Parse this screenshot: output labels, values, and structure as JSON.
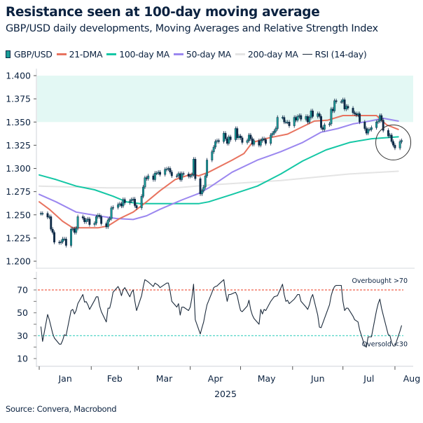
{
  "chart_data": {
    "type": "candlestick-line",
    "title": "Resistance seen at 100-day moving average",
    "subtitle": "GBP/USD daily developments, Moving Averages and Relative Strength Index",
    "source": "Source: Convera, Macrobond",
    "x_axis": {
      "months": [
        "Jan",
        "Feb",
        "Mar",
        "Apr",
        "May",
        "Jun",
        "Jul",
        "Aug"
      ],
      "year_label": "2025",
      "range": [
        "2025-01-01",
        "2025-08-10"
      ]
    },
    "price_axis": {
      "range": [
        1.2,
        1.4
      ],
      "ticks": [
        "1.400",
        "1.375",
        "1.350",
        "1.325",
        "1.300",
        "1.275",
        "1.250",
        "1.225",
        "1.200"
      ]
    },
    "rsi_axis": {
      "range": [
        0,
        85
      ],
      "ticks": [
        "70",
        "50",
        "30",
        "10"
      ]
    },
    "resistance_band": {
      "from": 1.35,
      "to": 1.4,
      "color": "#e3f8f4"
    },
    "highlight_circle": {
      "date": "2025-07-31",
      "price": 1.328
    },
    "rsi_levels": [
      {
        "value": 70,
        "label": "Overbought >70",
        "color": "#f0604a"
      },
      {
        "value": 30,
        "label": "Oversold <30",
        "color": "#3fd1c0"
      }
    ],
    "legend": [
      {
        "name": "GBP/USD",
        "kind": "candle"
      },
      {
        "name": "21-DMA",
        "color": "#e8735f"
      },
      {
        "name": "100-day MA",
        "color": "#14c7a5"
      },
      {
        "name": "50-day MA",
        "color": "#9b87ef"
      },
      {
        "name": "200-day MA",
        "color": "#e4e4e4"
      },
      {
        "name": "RSI (14-day)",
        "color": "#1c2b3c"
      }
    ],
    "colors": {
      "up": "#1a9e98",
      "down": "#0e2a47",
      "outline": "#0e2a47"
    },
    "weeks": [
      {
        "week": "2025-01-02",
        "close": [
          1.2515,
          1.2515
        ],
        "rsi": [
          38,
          25
        ]
      },
      {
        "week": "2025-01-06",
        "close": [
          1.2475,
          1.248,
          1.2345,
          1.231,
          1.2205
        ],
        "rsi": [
          48.6,
          44,
          38,
          32,
          28
        ]
      },
      {
        "week": "2025-01-13",
        "close": [
          1.22,
          1.221,
          1.224,
          1.224,
          1.217
        ],
        "rsi": [
          22.6,
          22.6,
          26,
          30.8,
          30
        ]
      },
      {
        "week": "2025-01-20",
        "close": [
          1.2345,
          1.235,
          1.231,
          1.2355,
          1.248
        ],
        "rsi": [
          52,
          53,
          49,
          52,
          58
        ]
      },
      {
        "week": "2025-01-27",
        "close": [
          1.2465,
          1.2425,
          1.2445,
          1.2455,
          1.2395
        ],
        "rsi": [
          66,
          59.4,
          59.8,
          57,
          53
        ]
      },
      {
        "week": "2025-02-03",
        "close": [
          1.241,
          1.248,
          1.2495,
          1.248,
          1.2405
        ],
        "rsi": [
          61,
          64,
          64,
          56,
          51
        ]
      },
      {
        "week": "2025-02-10",
        "close": [
          1.237,
          1.2445,
          1.246,
          1.2575,
          1.258
        ],
        "rsi": [
          42,
          54,
          54,
          60,
          68
        ]
      },
      {
        "week": "2025-02-17",
        "close": [
          1.261,
          1.262,
          1.2595,
          1.2665,
          1.263
        ],
        "rsi": [
          73,
          70,
          65,
          70,
          72
        ]
      },
      {
        "week": "2025-02-24",
        "close": [
          1.265,
          1.2665,
          1.267,
          1.26,
          1.2575
        ],
        "rsi": [
          64,
          68,
          70,
          60,
          52
        ]
      },
      {
        "week": "2025-03-03",
        "close": [
          1.27,
          1.28,
          1.29,
          1.289,
          1.292
        ],
        "rsi": [
          65,
          73,
          79,
          78,
          77
        ]
      },
      {
        "week": "2025-03-10",
        "close": [
          1.288,
          1.295,
          1.295,
          1.296,
          1.2935
        ],
        "rsi": [
          73,
          76,
          75,
          74,
          72
        ]
      },
      {
        "week": "2025-03-17",
        "close": [
          1.299,
          1.2995,
          1.3,
          1.296,
          1.292
        ],
        "rsi": [
          75,
          76,
          76,
          69,
          60
        ]
      },
      {
        "week": "2025-03-24",
        "close": [
          1.292,
          1.2945,
          1.288,
          1.2945,
          1.294
        ],
        "rsi": [
          55,
          58,
          48,
          55,
          55
        ]
      },
      {
        "week": "2025-03-31",
        "close": [
          1.2915,
          1.292,
          1.2935,
          1.31,
          1.289
        ],
        "rsi": [
          52,
          55,
          63,
          75,
          44
        ]
      },
      {
        "week": "2025-04-07",
        "close": [
          1.2725,
          1.276,
          1.28,
          1.292,
          1.309
        ],
        "rsi": [
          31.5,
          37,
          42,
          50,
          57
        ]
      },
      {
        "week": "2025-04-14",
        "close": [
          1.318,
          1.323,
          1.329,
          1.33,
          1.329
        ],
        "rsi": [
          68,
          72,
          73,
          73.5,
          75
        ]
      },
      {
        "week": "2025-04-21",
        "close": [
          1.338,
          1.332,
          1.327,
          1.334,
          1.331
        ],
        "rsi": [
          79,
          68,
          60,
          66,
          66
        ]
      },
      {
        "week": "2025-04-28",
        "close": [
          1.343,
          1.333,
          1.335,
          1.333,
          1.328
        ],
        "rsi": [
          68,
          65,
          58,
          52,
          51
        ]
      },
      {
        "week": "2025-05-05",
        "close": [
          1.33,
          1.336,
          1.332,
          1.326,
          1.33
        ],
        "rsi": [
          56,
          61,
          53,
          48,
          45
        ]
      },
      {
        "week": "2025-05-12",
        "close": [
          1.325,
          1.33,
          1.332,
          1.331,
          1.327
        ],
        "rsi": [
          40,
          53,
          49,
          53,
          52
        ]
      },
      {
        "week": "2025-05-19",
        "close": [
          1.336,
          1.338,
          1.34,
          1.343,
          1.355
        ],
        "rsi": [
          60,
          62,
          64,
          64.5,
          65
        ]
      },
      {
        "week": "2025-05-26",
        "close": [
          1.355,
          1.35,
          1.35,
          1.35,
          1.346
        ],
        "rsi": [
          75,
          66,
          60,
          61,
          58
        ]
      },
      {
        "week": "2025-06-02",
        "close": [
          1.355,
          1.352,
          1.356,
          1.357,
          1.353
        ],
        "rsi": [
          62,
          64,
          66,
          66,
          60
        ]
      },
      {
        "week": "2025-06-09",
        "close": [
          1.356,
          1.35,
          1.355,
          1.362,
          1.356
        ],
        "rsi": [
          55,
          53,
          57,
          63,
          66
        ]
      },
      {
        "week": "2025-06-16",
        "close": [
          1.359,
          1.356,
          1.344,
          1.342,
          1.347
        ],
        "rsi": [
          48,
          37.5,
          37,
          41,
          45
        ]
      },
      {
        "week": "2025-06-23",
        "close": [
          1.348,
          1.364,
          1.362,
          1.373,
          1.372
        ],
        "rsi": [
          57,
          65,
          70,
          73,
          74
        ]
      },
      {
        "week": "2025-06-30",
        "close": [
          1.372,
          1.374,
          1.364,
          1.367,
          1.365
        ],
        "rsi": [
          74,
          60,
          52,
          54,
          54
        ]
      },
      {
        "week": "2025-07-07",
        "close": [
          1.36,
          1.359,
          1.3575,
          1.359,
          1.35
        ],
        "rsi": [
          47,
          44,
          43,
          42,
          35
        ]
      },
      {
        "week": "2025-07-14",
        "close": [
          1.343,
          1.338,
          1.342,
          1.342,
          1.344
        ],
        "rsi": [
          21,
          20,
          29,
          29,
          29
        ]
      },
      {
        "week": "2025-07-21",
        "close": [
          1.35,
          1.351,
          1.357,
          1.352,
          1.341
        ],
        "rsi": [
          52,
          58,
          62,
          54,
          48
        ]
      },
      {
        "week": "2025-07-28",
        "close": [
          1.335,
          1.336,
          1.329,
          1.325,
          1.322
        ],
        "rsi": [
          30.8,
          30.2,
          24,
          21,
          21
        ]
      },
      {
        "week": "2025-08-04",
        "close": [
          1.329,
          1.33
        ],
        "rsi": [
          34,
          39
        ]
      }
    ],
    "moving_averages": {
      "dma21": [
        [
          "2025-01-01",
          1.264
        ],
        [
          "2025-01-07",
          1.256
        ],
        [
          "2025-01-15",
          1.243
        ],
        [
          "2025-01-21",
          1.236
        ],
        [
          "2025-01-30",
          1.236
        ],
        [
          "2025-02-05",
          1.236
        ],
        [
          "2025-02-11",
          1.238
        ],
        [
          "2025-02-18",
          1.246
        ],
        [
          "2025-02-26",
          1.253
        ],
        [
          "2025-03-06",
          1.264
        ],
        [
          "2025-03-14",
          1.276
        ],
        [
          "2025-03-23",
          1.288
        ],
        [
          "2025-04-02",
          1.294
        ],
        [
          "2025-04-06",
          1.292
        ],
        [
          "2025-04-12",
          1.296
        ],
        [
          "2025-04-26",
          1.309
        ],
        [
          "2025-05-03",
          1.316
        ],
        [
          "2025-05-08",
          1.328
        ],
        [
          "2025-05-18",
          1.333
        ],
        [
          "2025-05-29",
          1.337
        ],
        [
          "2025-06-07",
          1.345
        ],
        [
          "2025-06-14",
          1.351
        ],
        [
          "2025-06-22",
          1.352
        ],
        [
          "2025-07-01",
          1.357
        ],
        [
          "2025-07-13",
          1.357
        ],
        [
          "2025-07-21",
          1.357
        ],
        [
          "2025-07-27",
          1.347
        ],
        [
          "2025-08-03",
          1.342
        ]
      ],
      "ma50": [
        [
          "2025-01-01",
          1.272
        ],
        [
          "2025-01-11",
          1.264
        ],
        [
          "2025-01-23",
          1.253
        ],
        [
          "2025-02-05",
          1.249
        ],
        [
          "2025-02-16",
          1.246
        ],
        [
          "2025-02-26",
          1.245
        ],
        [
          "2025-03-06",
          1.249
        ],
        [
          "2025-03-14",
          1.256
        ],
        [
          "2025-03-27",
          1.266
        ],
        [
          "2025-04-06",
          1.273
        ],
        [
          "2025-04-12",
          1.279
        ],
        [
          "2025-04-26",
          1.296
        ],
        [
          "2025-05-11",
          1.309
        ],
        [
          "2025-05-25",
          1.318
        ],
        [
          "2025-06-07",
          1.328
        ],
        [
          "2025-06-18",
          1.339
        ],
        [
          "2025-06-28",
          1.343
        ],
        [
          "2025-07-07",
          1.348
        ],
        [
          "2025-07-17",
          1.351
        ],
        [
          "2025-07-25",
          1.354
        ],
        [
          "2025-08-03",
          1.351
        ]
      ],
      "ma100": [
        [
          "2025-01-01",
          1.293
        ],
        [
          "2025-01-11",
          1.288
        ],
        [
          "2025-01-23",
          1.281
        ],
        [
          "2025-02-03",
          1.277
        ],
        [
          "2025-02-14",
          1.27
        ],
        [
          "2025-02-22",
          1.264
        ],
        [
          "2025-03-02",
          1.262
        ],
        [
          "2025-03-14",
          1.262
        ],
        [
          "2025-03-27",
          1.262
        ],
        [
          "2025-04-06",
          1.262
        ],
        [
          "2025-04-12",
          1.264
        ],
        [
          "2025-04-26",
          1.272
        ],
        [
          "2025-05-11",
          1.281
        ],
        [
          "2025-05-25",
          1.294
        ],
        [
          "2025-06-07",
          1.308
        ],
        [
          "2025-06-21",
          1.32
        ],
        [
          "2025-07-05",
          1.328
        ],
        [
          "2025-07-18",
          1.332
        ],
        [
          "2025-08-03",
          1.334
        ]
      ],
      "ma200": [
        [
          "2025-01-01",
          1.281
        ],
        [
          "2025-02-11",
          1.279
        ],
        [
          "2025-03-23",
          1.279
        ],
        [
          "2025-04-12",
          1.282
        ],
        [
          "2025-05-25",
          1.287
        ],
        [
          "2025-07-05",
          1.294
        ],
        [
          "2025-08-03",
          1.297
        ]
      ]
    }
  }
}
